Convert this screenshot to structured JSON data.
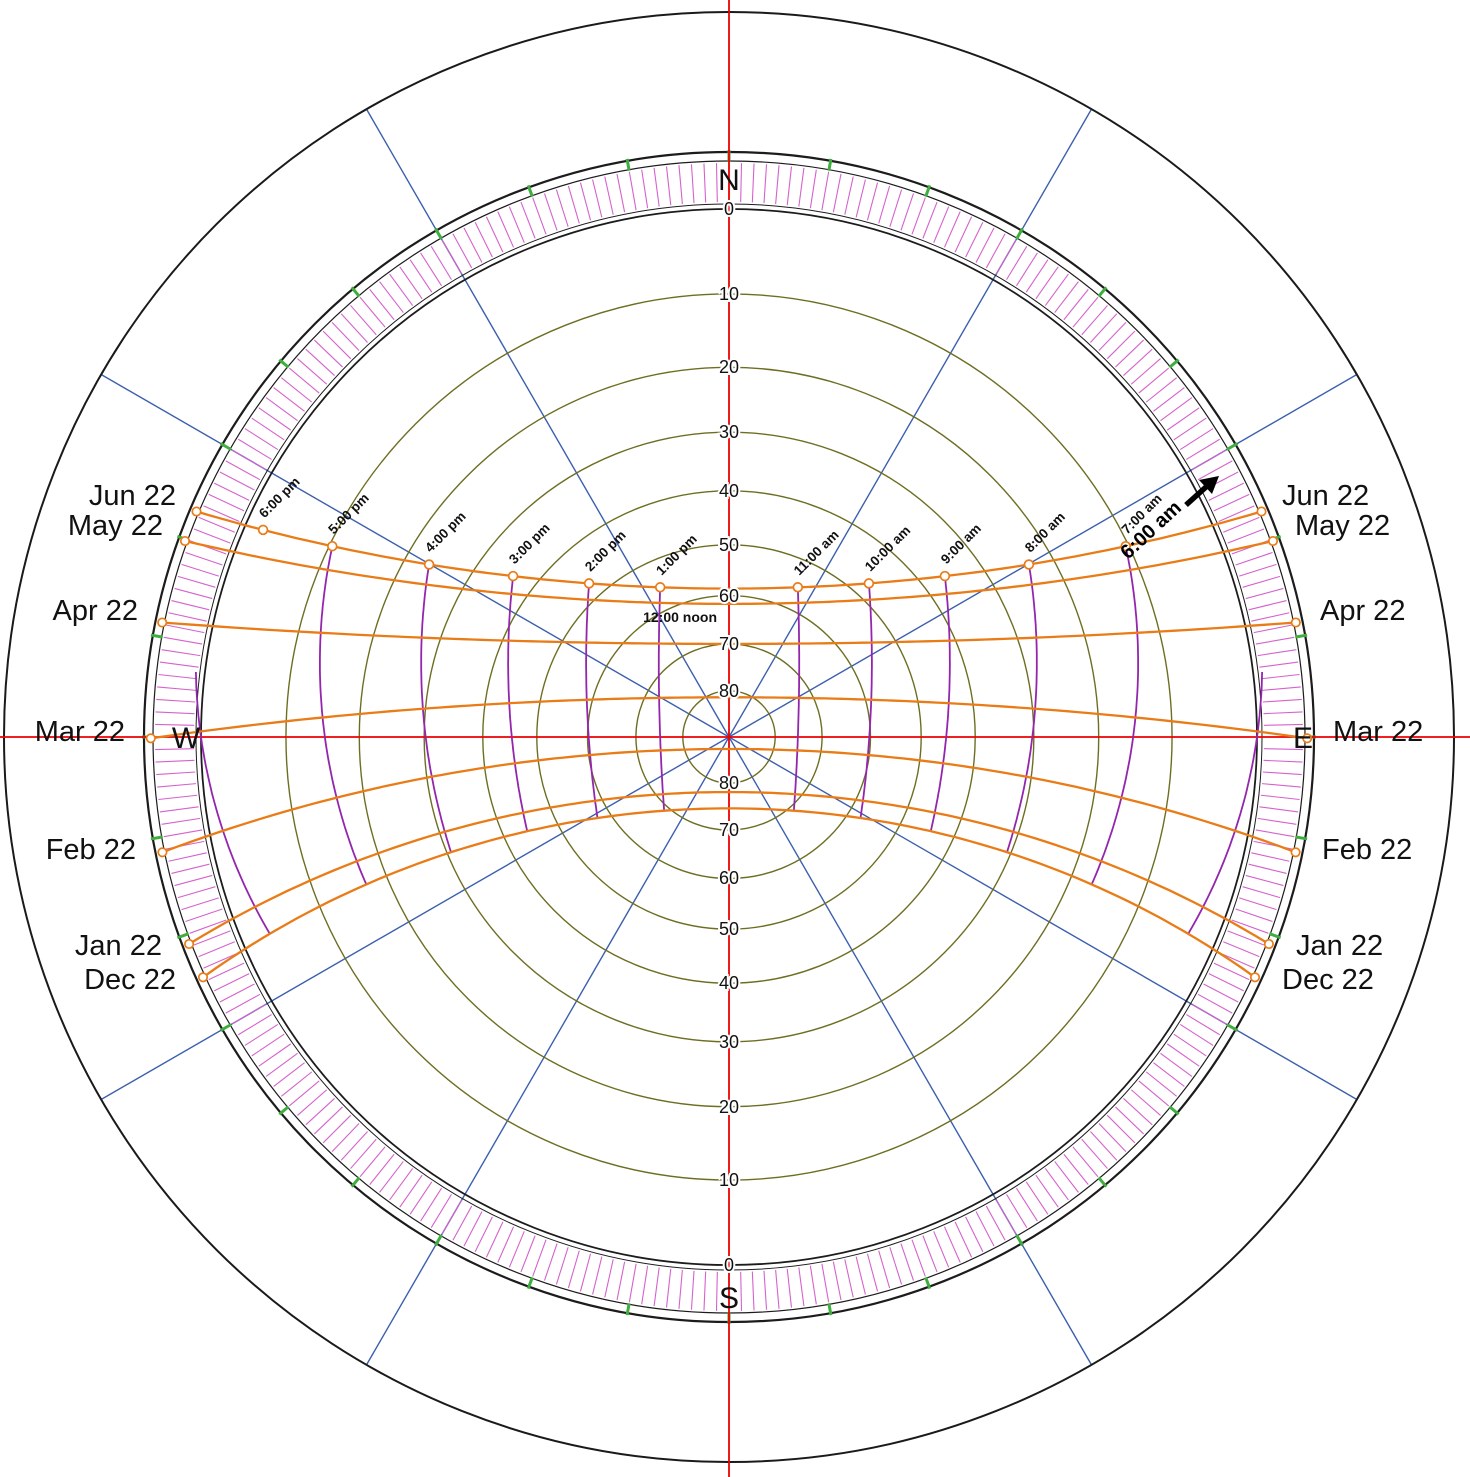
{
  "chart_data": {
    "type": "sun-path-polar",
    "projection": "stereographic",
    "model_latitude_deg": -8,
    "compass": {
      "north": "N",
      "east": "E",
      "south": "S",
      "west": "W"
    },
    "altitude_ticks": [
      0,
      10,
      20,
      30,
      40,
      50,
      60,
      70,
      80
    ],
    "azimuth_line_step_deg": 30,
    "green_tick_step_deg": 10,
    "date_curves": [
      {
        "label": "Jun 22",
        "declination_deg": 23.4
      },
      {
        "label": "May 22",
        "declination_deg": 20.3
      },
      {
        "label": "Apr 22",
        "declination_deg": 12.0
      },
      {
        "label": "Mar 22",
        "declination_deg": 0.6
      },
      {
        "label": "Feb 22",
        "declination_deg": -10.6
      },
      {
        "label": "Jan 22",
        "declination_deg": -19.9
      },
      {
        "label": "Dec 22",
        "declination_deg": -23.4
      }
    ],
    "hour_lines": [
      {
        "hour": 6,
        "label": "6:00 am",
        "labeled": false
      },
      {
        "hour": 7,
        "label": "7:00 am",
        "labeled": true
      },
      {
        "hour": 8,
        "label": "8:00 am",
        "labeled": true
      },
      {
        "hour": 9,
        "label": "9:00 am",
        "labeled": true
      },
      {
        "hour": 10,
        "label": "10:00 am",
        "labeled": true
      },
      {
        "hour": 11,
        "label": "11:00 am",
        "labeled": true
      },
      {
        "hour": 12,
        "label": "12:00 noon",
        "labeled": true
      },
      {
        "hour": 13,
        "label": "1:00 pm",
        "labeled": true
      },
      {
        "hour": 14,
        "label": "2:00 pm",
        "labeled": true
      },
      {
        "hour": 15,
        "label": "3:00 pm",
        "labeled": true
      },
      {
        "hour": 16,
        "label": "4:00 pm",
        "labeled": true
      },
      {
        "hour": 17,
        "label": "5:00 pm",
        "labeled": true
      },
      {
        "hour": 18,
        "label": "6:00 pm",
        "labeled": true
      }
    ],
    "annotation": {
      "label": "6:00 am",
      "type": "arrow-callout"
    },
    "colors": {
      "axis": "#ee0000",
      "azimuth": "#3c5fae",
      "altitude_ring": "#6e6e23",
      "horizon": "#1c1c1c",
      "band_hatch": "#d662cc",
      "green_tick": "#3fae3f",
      "sun_path": "#e97c17",
      "hour_line": "#9326ad",
      "marker_fill": "#ffffff",
      "text": "#111111",
      "annotation": "#000000"
    }
  }
}
